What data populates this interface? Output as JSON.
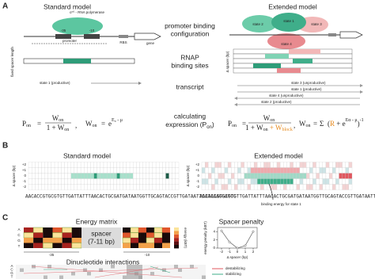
{
  "panel_a": {
    "label": "A",
    "standard_title": "Standard model",
    "extended_title": "Extended model",
    "polymerase": "σ⁷⁰ - RNA polymerase",
    "box_35": "-35",
    "box_10": "-10",
    "promoter": "promoter",
    "rbs": "RBS",
    "gene": "gene",
    "states": [
      "state 1",
      "state 2",
      "state 3",
      "state 4"
    ],
    "row_labels": [
      [
        "promoter binding",
        "configuration"
      ],
      [
        "RNAP",
        "binding sites"
      ],
      [
        "transcript"
      ],
      [
        "calculating",
        "expression (P",
        "on",
        ")"
      ]
    ],
    "fixed_spacer": "fixed spacer length",
    "delta_spacer": "Δ spacer (bp)",
    "standard_transcript": "state 1 (productive)",
    "extended_transcripts": [
      "state 3 (unproductive)",
      "state 1 (productive)",
      "state 4 (unproductive)",
      "state 2 (productive)"
    ],
    "formula_standard": {
      "p": "P",
      "sub": "on",
      "eq": "=",
      "num": "W",
      "den": "1 + W",
      "comma": ",",
      "w": "W",
      "e": "e",
      "exp": "E₀ - μ"
    },
    "formula_extended": {
      "p": "P",
      "sub": "on",
      "eq": "=",
      "num": "W",
      "den": "1 + W",
      "plus": " + W",
      "block": "block",
      "comma": ",",
      "w": "W",
      "sigma": "Σ",
      "open": "(",
      "r": "R",
      "plus_e": " + e",
      "exp": "Eα - μ",
      "close": ")",
      "pow": "-1"
    }
  },
  "panel_b": {
    "label": "B",
    "standard_title": "Standard model",
    "extended_title": "Extended model",
    "ylabel": "Δ spacer (bp)",
    "yticks": [
      "+2",
      "+1",
      "0",
      "-1",
      "-2"
    ],
    "sequence": "AACACCGTGCGTGTTGATTATTTAACACTGCGATGATAATGGTTGCAGTACCGTTGATAATTCATAAAGGATCC",
    "annotation": "binding energy for state 1"
  },
  "panel_c": {
    "label": "C",
    "energy_title": "Energy matrix",
    "spacer_text": [
      "spacer",
      "(7-11 bp)"
    ],
    "bases": [
      "A",
      "C",
      "G",
      "T"
    ],
    "box_35": "-35",
    "box_10": "-10",
    "colorbar_label": "energy (kBT)",
    "spacer_penalty": {
      "title": "Spacer penalty",
      "xlabel": "Δ spacer (bp)",
      "ylabel": "energy penalty (kBT)",
      "x": [
        -2,
        -1,
        0,
        1,
        2
      ],
      "values": [
        4.2,
        1.5,
        0,
        0.6,
        4
      ],
      "xlim": [
        -2.5,
        2.5
      ],
      "xticks": [
        -2,
        -1,
        0,
        1,
        2
      ],
      "ylim": [
        0,
        5
      ],
      "yticks": [
        0,
        2,
        4
      ]
    },
    "dinucleotide_title": "Dinucleotide interactions",
    "legend": [
      "destabilizing",
      "stabilizing"
    ]
  }
}
